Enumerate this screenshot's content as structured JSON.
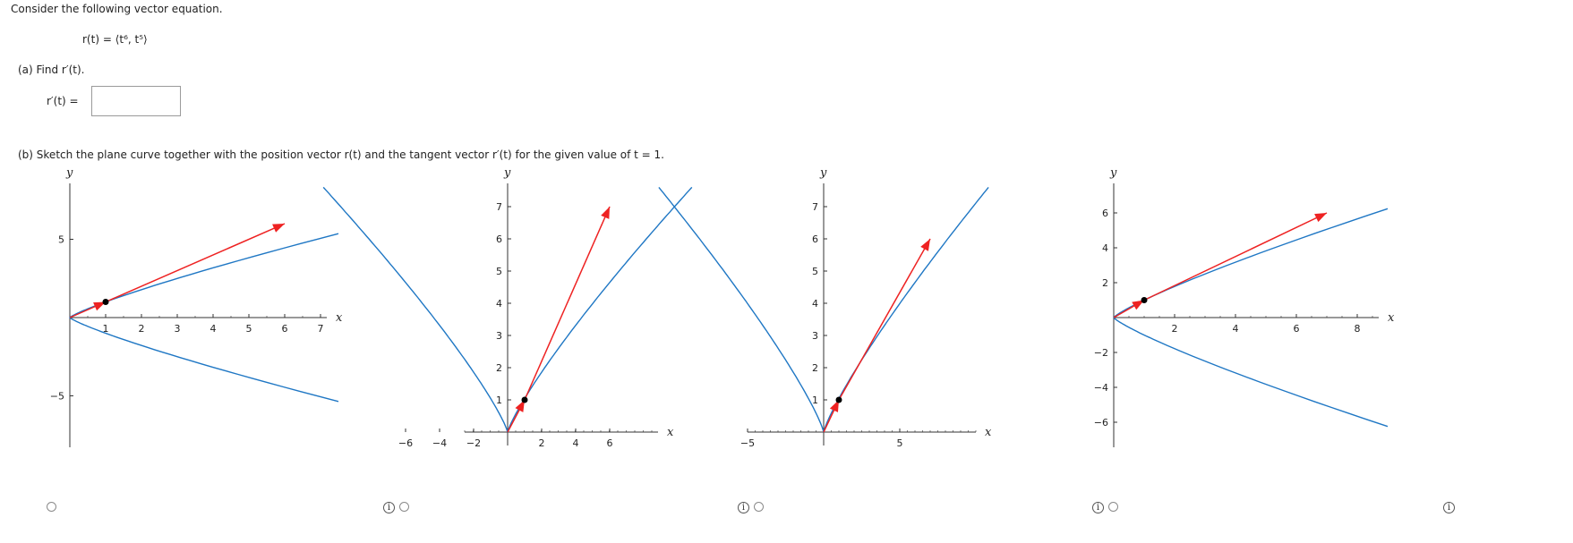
{
  "problem": {
    "intro": "Consider the following vector equation.",
    "equation": "r(t) = ⟨t⁶, t⁵⟩",
    "part_a_prompt": "(a)  Find r′(t).",
    "part_a_label": "r′(t) =",
    "part_a_value": "",
    "part_b_prompt": "(b)  Sketch the plane curve together with the position vector r(t) and the tangent vector r′(t) for the given value of t = 1."
  },
  "colors": {
    "curve": "#1f77c4",
    "vector": "#ee2222",
    "point": "#000000",
    "axis": "#333333"
  },
  "icons": {
    "info": "info-icon",
    "radio": "radio-button"
  },
  "chart_data": [
    {
      "type": "line",
      "xlabel": "x",
      "ylabel": "y",
      "xlim": [
        0,
        7.5
      ],
      "ylim": [
        -8,
        8.5
      ],
      "xticks": [
        1,
        2,
        3,
        4,
        5,
        6,
        7
      ],
      "yticks": [
        -5,
        5
      ],
      "curve": "x = t^6, y = ±t^5 (x ≥ 0)",
      "point": [
        1,
        1
      ],
      "position_vector": {
        "from": [
          0,
          0
        ],
        "to": [
          1,
          1
        ]
      },
      "tangent_vector": {
        "from": [
          1,
          1
        ],
        "to": [
          6,
          6
        ]
      }
    },
    {
      "type": "line",
      "xlabel": "x",
      "ylabel": "y",
      "xlim": [
        -8,
        8
      ],
      "ylim": [
        0,
        7.6
      ],
      "xticks": [
        -6,
        -4,
        -2,
        2,
        4,
        6
      ],
      "yticks": [
        1,
        2,
        3,
        4,
        5,
        6,
        7
      ],
      "curve": "y = |x|^(5/6)-like, symmetric",
      "point": [
        1,
        1
      ],
      "position_vector": {
        "from": [
          0,
          0
        ],
        "to": [
          1,
          1
        ]
      },
      "tangent_vector": {
        "from": [
          1,
          1
        ],
        "to": [
          6,
          7
        ]
      }
    },
    {
      "type": "line",
      "xlabel": "x",
      "ylabel": "y",
      "xlim": [
        -8,
        9
      ],
      "ylim": [
        0,
        7.6
      ],
      "xticks": [
        -5,
        5
      ],
      "yticks": [
        1,
        2,
        3,
        4,
        5,
        6,
        7
      ],
      "curve": "y = |x|^(5/6)-like, symmetric",
      "point": [
        1,
        1
      ],
      "position_vector": {
        "from": [
          0,
          0
        ],
        "to": [
          1,
          1
        ]
      },
      "tangent_vector": {
        "from": [
          1,
          1
        ],
        "to": [
          7,
          6
        ]
      }
    },
    {
      "type": "line",
      "xlabel": "x",
      "ylabel": "y",
      "xlim": [
        0,
        9
      ],
      "ylim": [
        -7,
        7.5
      ],
      "xticks": [
        2,
        4,
        6,
        8
      ],
      "yticks": [
        -6,
        -4,
        -2,
        2,
        4,
        6
      ],
      "curve": "x = t^6, y = ±t^5 (x ≥ 0)",
      "point": [
        1,
        1
      ],
      "position_vector": {
        "from": [
          0,
          0
        ],
        "to": [
          1,
          1
        ]
      },
      "tangent_vector": {
        "from": [
          1,
          1
        ],
        "to": [
          7,
          6
        ]
      }
    }
  ]
}
